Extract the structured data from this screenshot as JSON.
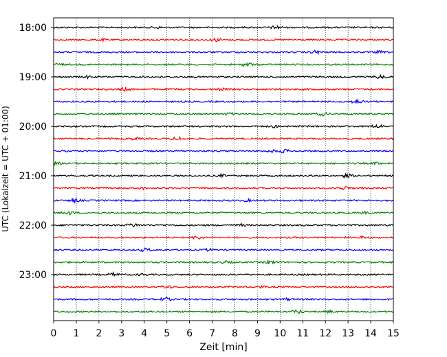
{
  "chart_data": {
    "type": "line",
    "title": "",
    "xlabel": "Zeit  [min]",
    "ylabel": "UTC (Lokalzeit = UTC + 01:00)",
    "xlim": [
      0,
      15
    ],
    "x_ticks": [
      "0",
      "1",
      "2",
      "3",
      "4",
      "5",
      "6",
      "7",
      "8",
      "9",
      "10",
      "11",
      "12",
      "13",
      "14",
      "15"
    ],
    "y_ticks": [
      "18:00",
      "19:00",
      "20:00",
      "21:00",
      "22:00",
      "23:00"
    ],
    "trace_count": 24,
    "trace_start": "18:00",
    "trace_interval_min": 15,
    "colors": [
      "#000000",
      "#ff0000",
      "#0000ff",
      "#008000"
    ],
    "grid": "vertical dotted at each minute"
  }
}
